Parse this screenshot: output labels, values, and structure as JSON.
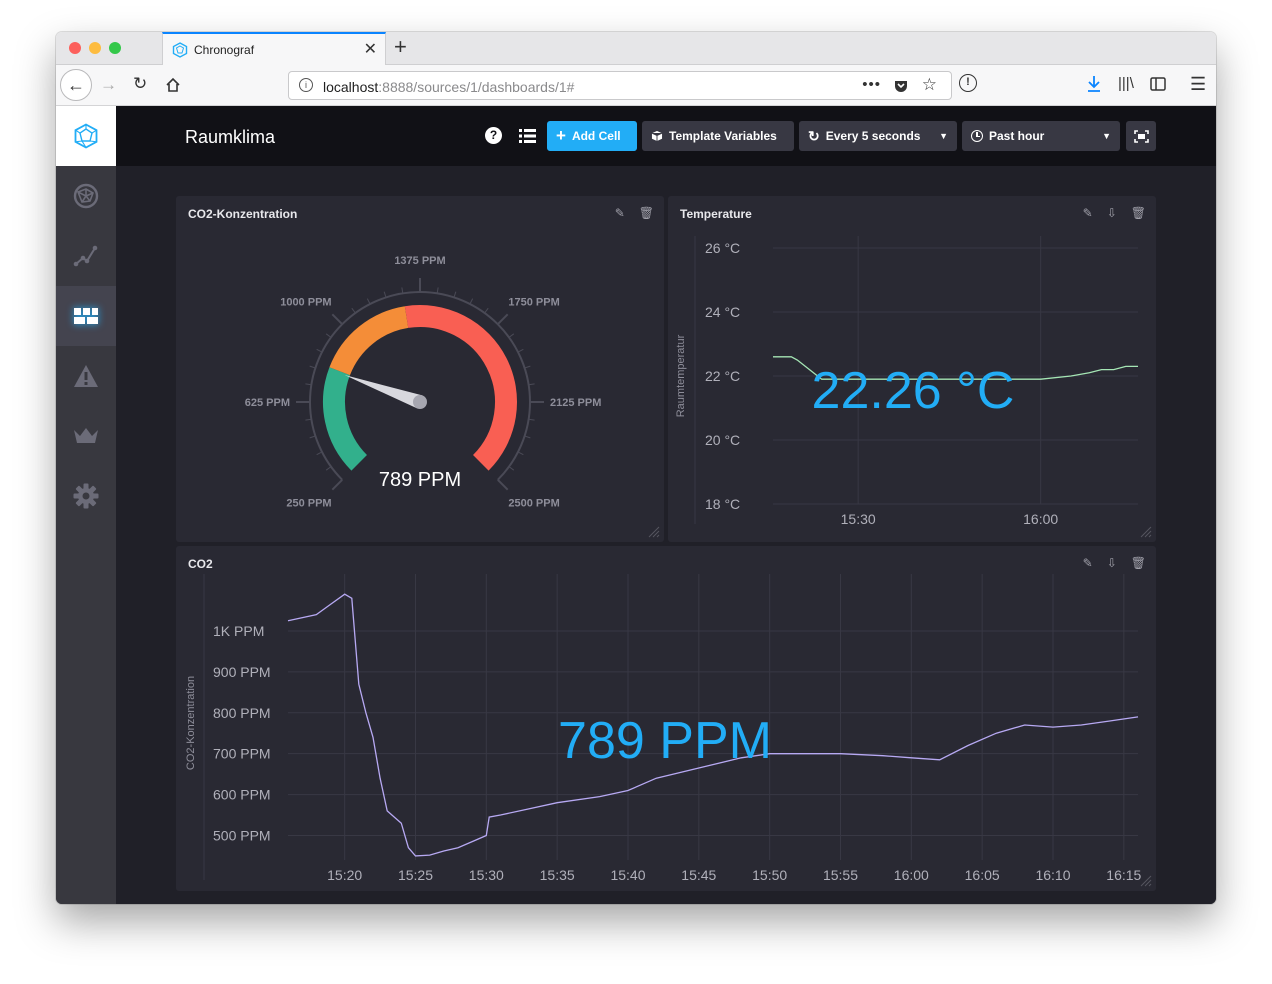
{
  "browser": {
    "tab_title": "Chronograf",
    "url_host": "localhost",
    "url_rest": ":8888/sources/1/dashboards/1#"
  },
  "app": {
    "dashboard_title": "Raumklima",
    "add_cell_label": "Add Cell",
    "template_variables_label": "Template Variables",
    "refresh_label": "Every 5 seconds",
    "time_range_label": "Past hour"
  },
  "colors": {
    "accent": "#22adf6",
    "gauge_green": "#32b08c",
    "gauge_orange": "#f48d38",
    "gauge_red": "#f95f53",
    "temp_line": "#a5e6b5",
    "co2_line": "#b7a9f3",
    "single_stat": "#22adf6"
  },
  "cells": {
    "gauge": {
      "title": "CO2-Konzentration",
      "value_label": "789 PPM"
    },
    "temperature": {
      "title": "Temperature",
      "value_label": "22.26 °C"
    },
    "co2": {
      "title": "CO2",
      "value_label": "789 PPM"
    }
  },
  "chart_data": [
    {
      "type": "gauge",
      "title": "CO2-Konzentration",
      "min": 250,
      "max": 2500,
      "value": 789,
      "value_label": "789 PPM",
      "tick_labels": [
        "250 PPM",
        "625 PPM",
        "1000 PPM",
        "1375 PPM",
        "1750 PPM",
        "2125 PPM",
        "2500 PPM"
      ],
      "thresholds": [
        {
          "from": 250,
          "to": 800,
          "color": "#32b08c"
        },
        {
          "from": 800,
          "to": 1300,
          "color": "#f48d38"
        },
        {
          "from": 1300,
          "to": 2500,
          "color": "#f95f53"
        }
      ]
    },
    {
      "type": "line",
      "title": "Temperature",
      "ylabel": "Raumtemperatur",
      "ylim": [
        18,
        26
      ],
      "yticks": [
        26,
        24,
        22,
        20,
        18
      ],
      "ytick_labels": [
        "26 °C",
        "24 °C",
        "22 °C",
        "20 °C",
        "18 °C"
      ],
      "xlim": [
        "15:16",
        "16:16"
      ],
      "xticks": [
        "15:30",
        "16:00"
      ],
      "stat_label": "22.26 °C",
      "series": [
        {
          "x": [
            "15:16",
            "15:18",
            "15:19",
            "15:20",
            "15:22",
            "15:24",
            "15:26",
            "15:28",
            "15:30",
            "15:35",
            "15:40",
            "15:45",
            "15:50",
            "15:55",
            "16:00",
            "16:05",
            "16:08",
            "16:10",
            "16:12",
            "16:14",
            "16:16"
          ],
          "values": [
            22.6,
            22.6,
            22.6,
            22.5,
            22.2,
            21.9,
            21.9,
            21.9,
            21.9,
            21.9,
            21.9,
            21.9,
            21.9,
            21.9,
            21.9,
            22.0,
            22.1,
            22.2,
            22.2,
            22.3,
            22.3
          ]
        }
      ],
      "grid": true
    },
    {
      "type": "line",
      "title": "CO2",
      "ylabel": "CO2-Konzentration",
      "ylim": [
        440,
        1110
      ],
      "yticks": [
        1000,
        900,
        800,
        700,
        600,
        500
      ],
      "ytick_labels": [
        "1K PPM",
        "900 PPM",
        "800 PPM",
        "700 PPM",
        "600 PPM",
        "500 PPM"
      ],
      "xlim": [
        "15:16",
        "16:16"
      ],
      "xticks": [
        "15:20",
        "15:25",
        "15:30",
        "15:35",
        "15:40",
        "15:45",
        "15:50",
        "15:55",
        "16:00",
        "16:05",
        "16:10",
        "16:15"
      ],
      "stat_label": "789 PPM",
      "series": [
        {
          "x": [
            "15:16",
            "15:18",
            "15:19",
            "15:20",
            "15:20.5",
            "15:21",
            "15:21.5",
            "15:22",
            "15:22.5",
            "15:23",
            "15:23.5",
            "15:24",
            "15:24.5",
            "15:25",
            "15:26",
            "15:27",
            "15:28",
            "15:29",
            "15:30",
            "15:30.2",
            "15:31",
            "15:33",
            "15:35",
            "15:38",
            "15:40",
            "15:42",
            "15:45",
            "15:48",
            "15:50",
            "15:53",
            "15:55",
            "15:58",
            "16:00",
            "16:02",
            "16:04",
            "16:06",
            "16:08",
            "16:10",
            "16:12",
            "16:14",
            "16:16"
          ],
          "values": [
            1025,
            1040,
            1065,
            1090,
            1080,
            870,
            800,
            740,
            640,
            560,
            545,
            530,
            470,
            450,
            452,
            462,
            470,
            485,
            500,
            545,
            550,
            565,
            580,
            595,
            610,
            640,
            665,
            690,
            700,
            700,
            700,
            695,
            690,
            685,
            720,
            750,
            770,
            765,
            770,
            780,
            790
          ]
        }
      ],
      "grid": true
    }
  ]
}
